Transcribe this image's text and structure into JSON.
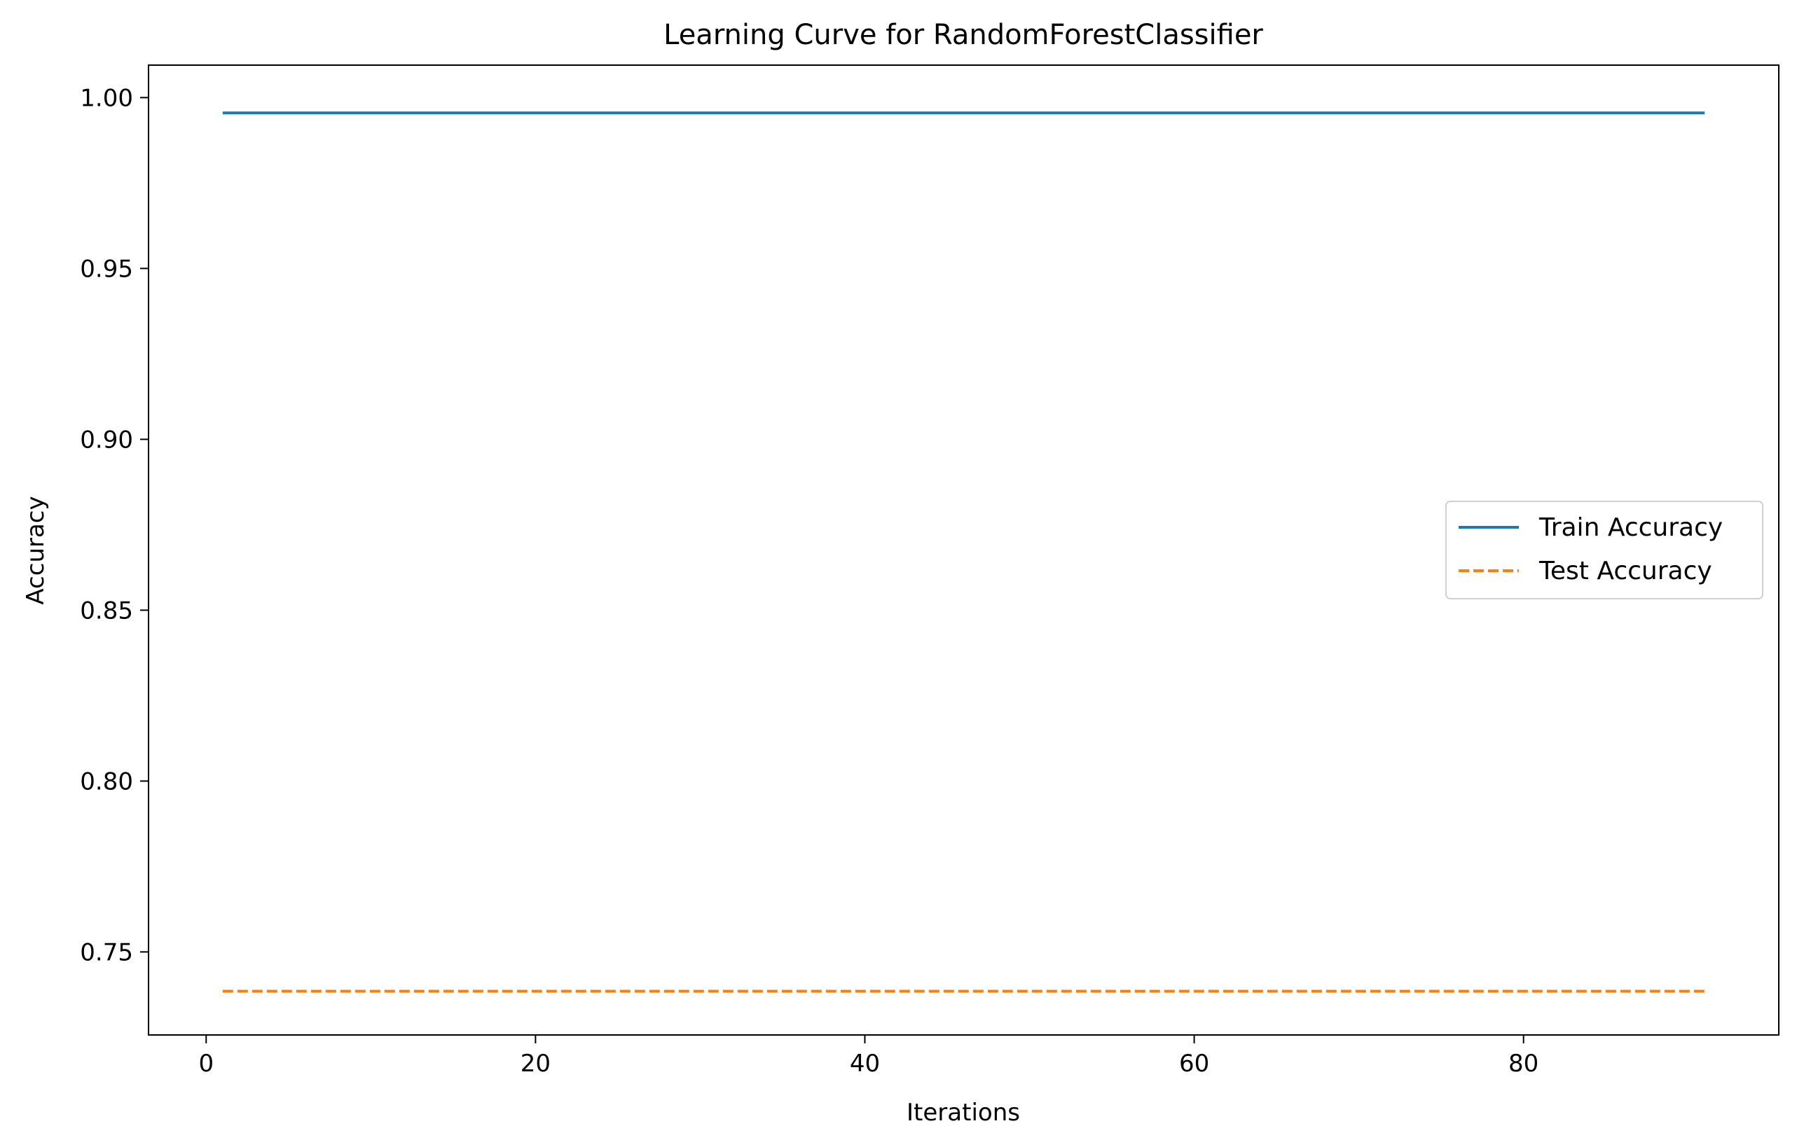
{
  "chart_data": {
    "type": "line",
    "title": "Learning Curve for RandomForestClassifier",
    "xlabel": "Iterations",
    "ylabel": "Accuracy",
    "xlim": [
      -3.5,
      95.5
    ],
    "ylim": [
      0.7257,
      1.0095
    ],
    "xticks": [
      0,
      20,
      40,
      60,
      80
    ],
    "xtick_labels": [
      "0",
      "20",
      "40",
      "60",
      "80"
    ],
    "yticks": [
      0.75,
      0.8,
      0.85,
      0.9,
      0.95,
      1.0
    ],
    "ytick_labels": [
      "0.75",
      "0.80",
      "0.85",
      "0.90",
      "0.95",
      "1.00"
    ],
    "grid": false,
    "legend_position": "center-right",
    "series": [
      {
        "name": "Train Accuracy",
        "color": "#1f77b4",
        "dash": "solid",
        "x": [
          1,
          91
        ],
        "y": [
          0.9955,
          0.9955
        ]
      },
      {
        "name": "Test Accuracy",
        "color": "#ff7f0e",
        "dash": "dashed",
        "x": [
          1,
          91
        ],
        "y": [
          0.7385,
          0.7385
        ]
      }
    ]
  }
}
